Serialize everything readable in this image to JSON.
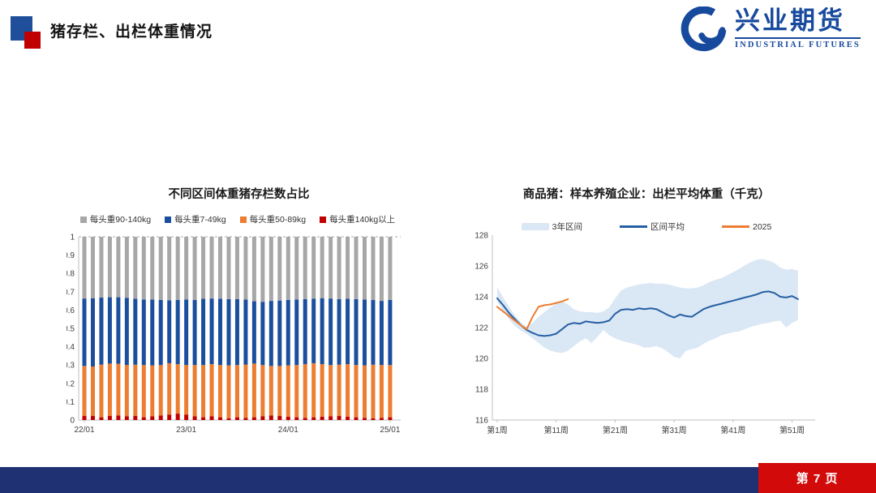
{
  "header": {
    "title": "猪存栏、出栏体重情况"
  },
  "logo": {
    "name_cn": "兴业期货",
    "name_en": "INDUSTRIAL FUTURES"
  },
  "footer": {
    "page_label": "第 7 页"
  },
  "colors": {
    "brand_blue": "#17499D",
    "footer_navy": "#1F3172",
    "footer_red": "#D20A0A",
    "bar_gray": "#A7A7A7",
    "bar_blue": "#1B4F9E",
    "bar_orange": "#ED7D31",
    "bar_red": "#C00000",
    "line_blue": "#2660A4",
    "line_orange": "#ED7D31",
    "band_fill": "#DAE7F4",
    "axis_line": "#BFBFBF"
  },
  "chart_data": [
    {
      "type": "bar",
      "stacked": true,
      "title": "不同区间体重猪存栏数占比",
      "legend": [
        {
          "label": "每头重90-140kg",
          "color": "#A7A7A7",
          "style": "square"
        },
        {
          "label": "每头重7-49kg",
          "color": "#1B4F9E",
          "style": "square"
        },
        {
          "label": "每头重50-89kg",
          "color": "#ED7D31",
          "style": "square"
        },
        {
          "label": "每头重140kg以上",
          "color": "#C00000",
          "style": "square"
        }
      ],
      "x_tick_labels": [
        "22/01",
        "23/01",
        "24/01",
        "25/01"
      ],
      "x_tick_bar_index": [
        0,
        12,
        24,
        36
      ],
      "y_tick_labels": [
        "1",
        "0.9",
        "0.8",
        "0.7",
        "0.6",
        "0.5",
        "0.4",
        "0.3",
        "0.2",
        "0.1",
        "0"
      ],
      "ylim": [
        0,
        1
      ],
      "grid": "dashed line at y=1 only",
      "bars": {
        "count": 37,
        "note": "cumulative stack tops as share of total; gray fills to 1.0",
        "red_top": [
          0.022,
          0.022,
          0.015,
          0.022,
          0.025,
          0.02,
          0.022,
          0.015,
          0.02,
          0.025,
          0.03,
          0.035,
          0.03,
          0.02,
          0.015,
          0.02,
          0.015,
          0.01,
          0.015,
          0.012,
          0.015,
          0.02,
          0.025,
          0.022,
          0.018,
          0.015,
          0.012,
          0.015,
          0.018,
          0.02,
          0.022,
          0.018,
          0.015,
          0.012,
          0.01,
          0.012,
          0.015
        ],
        "orange_top": [
          0.295,
          0.292,
          0.302,
          0.308,
          0.307,
          0.3,
          0.302,
          0.3,
          0.298,
          0.3,
          0.31,
          0.305,
          0.3,
          0.3,
          0.3,
          0.305,
          0.3,
          0.298,
          0.3,
          0.302,
          0.308,
          0.3,
          0.295,
          0.295,
          0.298,
          0.3,
          0.305,
          0.31,
          0.305,
          0.3,
          0.302,
          0.305,
          0.3,
          0.298,
          0.302,
          0.3,
          0.3
        ],
        "blue_top": [
          0.663,
          0.665,
          0.668,
          0.67,
          0.67,
          0.667,
          0.662,
          0.658,
          0.657,
          0.655,
          0.653,
          0.655,
          0.658,
          0.655,
          0.662,
          0.663,
          0.662,
          0.66,
          0.66,
          0.658,
          0.648,
          0.645,
          0.65,
          0.652,
          0.655,
          0.658,
          0.66,
          0.662,
          0.665,
          0.663,
          0.66,
          0.662,
          0.66,
          0.658,
          0.655,
          0.65,
          0.655
        ]
      }
    },
    {
      "type": "line",
      "title": "商品猪：样本养殖企业：出栏平均体重（千克）",
      "legend": [
        {
          "label": "3年区间",
          "color": "#DAE7F4",
          "style": "band"
        },
        {
          "label": "区间平均",
          "color": "#2660A4",
          "style": "line"
        },
        {
          "label": "2025",
          "color": "#ED7D31",
          "style": "line"
        }
      ],
      "x_tick_labels": [
        "第1周",
        "第11周",
        "第21周",
        "第31周",
        "第41周",
        "第51周"
      ],
      "x_tick_weeks": [
        1,
        11,
        21,
        31,
        41,
        51
      ],
      "xlim": [
        1,
        52
      ],
      "ylim": [
        116,
        128
      ],
      "y_tick_labels": [
        "128",
        "126",
        "124",
        "122",
        "120",
        "118",
        "116"
      ],
      "band": {
        "name": "3年区间",
        "upper": [
          124.6,
          123.95,
          123.35,
          122.8,
          122.35,
          122.05,
          122.3,
          122.7,
          123.0,
          123.3,
          123.55,
          123.7,
          123.5,
          123.2,
          123.05,
          123.0,
          123.0,
          122.95,
          123.05,
          123.3,
          123.9,
          124.4,
          124.6,
          124.7,
          124.8,
          124.85,
          124.9,
          124.85,
          124.85,
          124.8,
          124.7,
          124.6,
          124.55,
          124.55,
          124.6,
          124.75,
          124.95,
          125.1,
          125.2,
          125.4,
          125.6,
          125.8,
          126.05,
          126.25,
          126.4,
          126.45,
          126.35,
          126.2,
          125.9,
          125.75,
          125.8,
          125.7
        ],
        "lower": [
          123.7,
          123.1,
          122.55,
          122.1,
          121.8,
          121.6,
          121.3,
          121.0,
          120.7,
          120.5,
          120.4,
          120.35,
          120.5,
          120.8,
          121.1,
          121.3,
          121.0,
          121.4,
          121.85,
          121.5,
          121.3,
          121.15,
          121.05,
          120.95,
          120.85,
          120.7,
          120.72,
          120.8,
          120.65,
          120.4,
          120.1,
          120.0,
          120.5,
          120.6,
          120.7,
          120.95,
          121.15,
          121.3,
          121.5,
          121.6,
          121.7,
          121.75,
          121.9,
          122.05,
          122.15,
          122.25,
          122.3,
          122.4,
          122.45,
          122.0,
          122.3,
          122.5
        ]
      },
      "series": [
        {
          "name": "区间平均",
          "color": "#2660A4",
          "values": [
            123.9,
            123.45,
            122.95,
            122.55,
            122.15,
            121.85,
            121.65,
            121.5,
            121.45,
            121.5,
            121.6,
            121.9,
            122.2,
            122.3,
            122.25,
            122.4,
            122.35,
            122.3,
            122.35,
            122.45,
            122.9,
            123.15,
            123.2,
            123.15,
            123.25,
            123.2,
            123.25,
            123.2,
            123.0,
            122.8,
            122.65,
            122.85,
            122.75,
            122.7,
            122.95,
            123.2,
            123.35,
            123.45,
            123.55,
            123.65,
            123.75,
            123.85,
            123.95,
            124.05,
            124.15,
            124.3,
            124.35,
            124.25,
            124.0,
            123.95,
            124.05,
            123.85
          ]
        },
        {
          "name": "2025",
          "color": "#ED7D31",
          "values": [
            123.35,
            123.05,
            122.75,
            122.45,
            122.15,
            121.9,
            122.7,
            123.35,
            123.45,
            123.5,
            123.6,
            123.7,
            123.85
          ]
        }
      ]
    }
  ]
}
